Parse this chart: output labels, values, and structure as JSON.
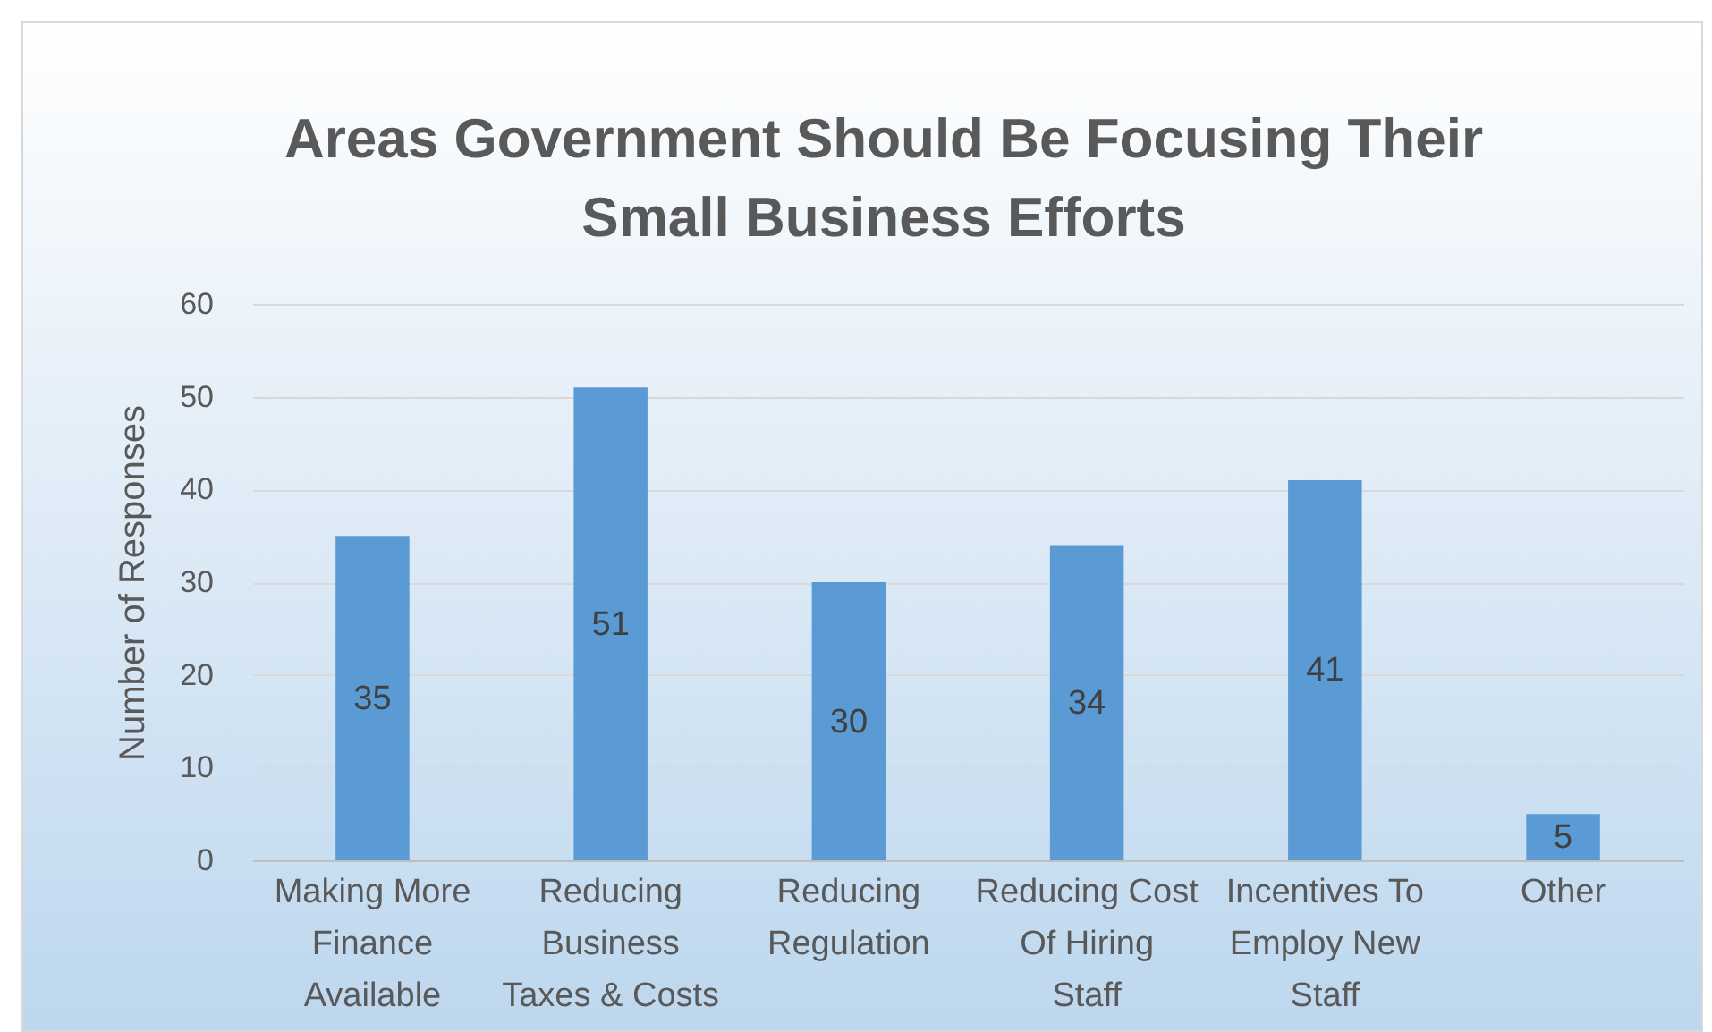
{
  "chart_data": {
    "type": "bar",
    "title": "Areas Government Should Be Focusing Their Small Business Efforts",
    "ylabel": "Number of Responses",
    "categories": [
      "Making More Finance Available",
      "Reducing Business Taxes & Costs",
      "Reducing Regulation",
      "Reducing Cost Of Hiring Staff",
      "Incentives To Employ New Staff",
      "Other"
    ],
    "values": [
      35,
      51,
      30,
      34,
      41,
      5
    ],
    "color": "#5b9bd5",
    "ylim": [
      0,
      60
    ],
    "yticks": [
      0,
      10,
      20,
      30,
      40,
      50,
      60
    ],
    "grid": "y",
    "data_labels": true
  }
}
